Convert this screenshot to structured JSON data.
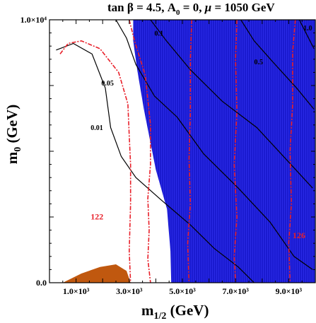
{
  "chart_data": {
    "type": "contour",
    "title": "tan β = 4.5, A",
    "title_parts": {
      "tan_beta": "tan β = 4.5, A",
      "a0_sub": "0",
      "rest": " = 0, ",
      "mu": "μ",
      "mu_rest": " = 1050 GeV"
    },
    "xlabel": {
      "main": "m",
      "sub": "1/2",
      "unit": " (GeV)"
    },
    "ylabel": {
      "main": "m",
      "sub": "0",
      "unit": " (GeV)"
    },
    "xlim": [
      0,
      10000
    ],
    "ylim": [
      0,
      10000
    ],
    "x_ticks": [
      {
        "value": 1000,
        "label": "1.0×10³"
      },
      {
        "value": 3000,
        "label": "3.0×10³"
      },
      {
        "value": 5000,
        "label": "5.0×10³"
      },
      {
        "value": 7000,
        "label": "7.0×10³"
      },
      {
        "value": 9000,
        "label": "9.0×10³"
      }
    ],
    "y_ticks": [
      {
        "value": 0,
        "label": "0.0"
      },
      {
        "value": 10000,
        "label": "1.0×10⁴"
      }
    ],
    "colors": {
      "excluded_region": "#1a1ad0",
      "small_region": "#c0580f",
      "higgs_contours": "#e8202a",
      "relic_contours": "#000000"
    },
    "regions": [
      {
        "name": "excluded-blue",
        "points": [
          [
            3150,
            10000
          ],
          [
            10000,
            10000
          ],
          [
            10000,
            0
          ],
          [
            4580,
            0
          ],
          [
            4550,
            1200
          ],
          [
            4420,
            2800
          ],
          [
            4000,
            4300
          ],
          [
            3550,
            6600
          ],
          [
            3300,
            8100
          ],
          [
            3150,
            9200
          ]
        ]
      },
      {
        "name": "orange-corner",
        "points": [
          [
            500,
            0
          ],
          [
            1200,
            350
          ],
          [
            1900,
            600
          ],
          [
            2500,
            700
          ],
          [
            2900,
            450
          ],
          [
            3050,
            0
          ]
        ]
      }
    ],
    "higgs_contours": [
      {
        "label": "122",
        "points": [
          [
            400,
            8700
          ],
          [
            700,
            9100
          ],
          [
            1200,
            9200
          ],
          [
            1900,
            8900
          ],
          [
            2600,
            8000
          ],
          [
            2950,
            6800
          ],
          [
            3000,
            5600
          ],
          [
            3050,
            4500
          ],
          [
            3050,
            3000
          ],
          [
            3000,
            1200
          ],
          [
            3050,
            0
          ]
        ]
      },
      {
        "label": "",
        "points": [
          [
            3000,
            10000
          ],
          [
            3200,
            9200
          ],
          [
            3600,
            7900
          ],
          [
            3800,
            6000
          ],
          [
            3800,
            4500
          ],
          [
            3700,
            3200
          ],
          [
            3750,
            2000
          ],
          [
            3700,
            900
          ],
          [
            3800,
            0
          ]
        ]
      },
      {
        "label": "",
        "points": [
          [
            5350,
            10000
          ],
          [
            5300,
            8500
          ],
          [
            5300,
            6500
          ],
          [
            5250,
            4700
          ],
          [
            5300,
            3000
          ],
          [
            5200,
            1500
          ],
          [
            5250,
            0
          ]
        ]
      },
      {
        "label": "",
        "points": [
          [
            7050,
            10000
          ],
          [
            7000,
            8500
          ],
          [
            7050,
            6500
          ],
          [
            6950,
            4500
          ],
          [
            7050,
            2500
          ],
          [
            6950,
            1000
          ],
          [
            7000,
            0
          ]
        ]
      },
      {
        "label": "126",
        "points": [
          [
            9250,
            10000
          ],
          [
            9150,
            8800
          ],
          [
            9150,
            6800
          ],
          [
            9050,
            5000
          ],
          [
            9100,
            3000
          ],
          [
            9000,
            1500
          ],
          [
            9050,
            0
          ]
        ]
      }
    ],
    "relic_contours": [
      {
        "label": "0.01",
        "points": [
          [
            250,
            8850
          ],
          [
            900,
            9100
          ],
          [
            1600,
            8700
          ],
          [
            2100,
            7400
          ],
          [
            2300,
            5900
          ],
          [
            2700,
            4800
          ],
          [
            3250,
            4000
          ],
          [
            4200,
            3150
          ],
          [
            5300,
            2200
          ],
          [
            6200,
            1300
          ],
          [
            7100,
            600
          ],
          [
            7700,
            0
          ]
        ]
      },
      {
        "label": "0.05",
        "points": [
          [
            2500,
            10000
          ],
          [
            2900,
            9300
          ],
          [
            3250,
            8300
          ],
          [
            3950,
            7100
          ],
          [
            4800,
            6300
          ],
          [
            5800,
            4900
          ],
          [
            7100,
            3600
          ],
          [
            8300,
            2300
          ],
          [
            9200,
            1000
          ],
          [
            9900,
            500
          ]
        ]
      },
      {
        "label": "0.1",
        "points": [
          [
            3800,
            10000
          ],
          [
            4400,
            9200
          ],
          [
            5300,
            8100
          ],
          [
            6500,
            6900
          ],
          [
            7800,
            5900
          ],
          [
            8900,
            4700
          ],
          [
            9900,
            3600
          ]
        ]
      },
      {
        "label": "0.5",
        "points": [
          [
            7200,
            10000
          ],
          [
            7700,
            9200
          ],
          [
            8400,
            8400
          ],
          [
            9300,
            7400
          ],
          [
            9950,
            6600
          ]
        ]
      },
      {
        "label": "1.0",
        "points": [
          [
            9400,
            10000
          ],
          [
            9700,
            9400
          ],
          [
            9950,
            8900
          ]
        ]
      }
    ]
  }
}
